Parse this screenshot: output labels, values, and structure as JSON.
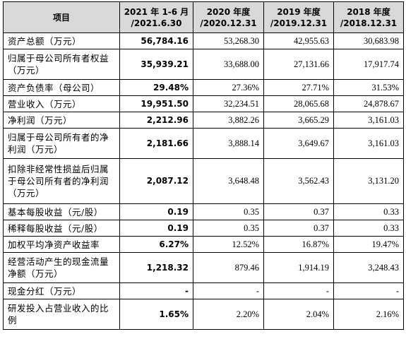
{
  "table": {
    "headers": [
      "项目",
      "2021 年 1-6 月\n/2021.6.30",
      "2020 年度\n/2020.12.31",
      "2019 年度\n/2019.12.31",
      "2018 年度\n/2018.12.31"
    ],
    "rows": [
      {
        "label": "资产总额（万元）",
        "v": [
          "56,784.16",
          "53,268.30",
          "42,955.63",
          "30,683.98"
        ]
      },
      {
        "label": "归属于母公司所有者权益（万元）",
        "v": [
          "35,939.21",
          "33,688.00",
          "27,131.66",
          "17,917.74"
        ]
      },
      {
        "label": "资产负债率（母公司）",
        "v": [
          "29.48%",
          "27.36%",
          "27.71%",
          "31.53%"
        ]
      },
      {
        "label": "营业收入（万元）",
        "v": [
          "19,951.50",
          "32,234.51",
          "28,065.68",
          "24,878.67"
        ]
      },
      {
        "label": "净利润（万元）",
        "v": [
          "2,212.96",
          "3,882.26",
          "3,665.29",
          "3,161.03"
        ]
      },
      {
        "label": "归属于母公司所有者的净利润（万元）",
        "v": [
          "2,181.66",
          "3,888.14",
          "3,649.67",
          "3,161.03"
        ]
      },
      {
        "label": "扣除非经常性损益后归属于母公司所有者的净利润（万元）",
        "v": [
          "2,087.12",
          "3,648.48",
          "3,562.43",
          "3,131.20"
        ]
      },
      {
        "label": "基本每股收益（元/股）",
        "v": [
          "0.19",
          "0.35",
          "0.37",
          "0.33"
        ]
      },
      {
        "label": "稀释每股收益（元/股）",
        "v": [
          "0.19",
          "0.35",
          "0.37",
          "0.33"
        ]
      },
      {
        "label": "加权平均净资产收益率",
        "v": [
          "6.27%",
          "12.52%",
          "16.87%",
          "19.47%"
        ]
      },
      {
        "label": "经营活动产生的现金流量净额（万元）",
        "v": [
          "1,218.32",
          "879.46",
          "1,914.19",
          "3,248.43"
        ]
      },
      {
        "label": "现金分红（万元）",
        "v": [
          "-",
          "-",
          "-",
          "-"
        ]
      },
      {
        "label": "研发投入占营业收入的比例",
        "v": [
          "1.65%",
          "2.20%",
          "2.04%",
          "2.16%"
        ]
      }
    ]
  }
}
